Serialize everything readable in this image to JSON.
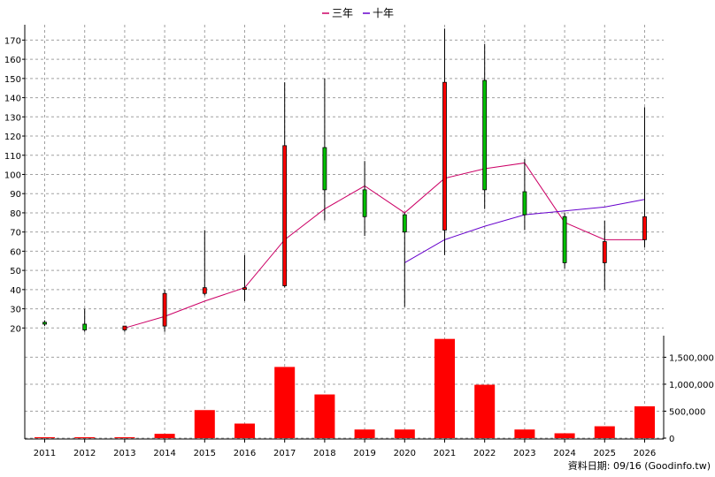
{
  "chart_data": {
    "type": "candlestick",
    "legend": [
      {
        "name": "三年",
        "color": "#cc0066"
      },
      {
        "name": "十年",
        "color": "#6600cc"
      }
    ],
    "categories": [
      "2011",
      "2012",
      "2013",
      "2014",
      "2015",
      "2016",
      "2017",
      "2018",
      "2019",
      "2020",
      "2021",
      "2022",
      "2023",
      "2024",
      "2025",
      "2026"
    ],
    "price_axis": {
      "ylim": [
        16,
        178
      ],
      "ticks": [
        20,
        30,
        40,
        50,
        60,
        70,
        80,
        90,
        100,
        110,
        120,
        130,
        140,
        150,
        160,
        170
      ]
    },
    "volume_axis": {
      "ylim": [
        0,
        1900000
      ],
      "ticks": [
        0,
        500000,
        1000000,
        1500000
      ],
      "tick_labels": [
        "0",
        "500,000",
        "1,000,000",
        "1,500,000"
      ]
    },
    "candles": [
      {
        "year": "2011",
        "open": 23,
        "close": 22,
        "high": 24,
        "low": 21,
        "color": "#00c000"
      },
      {
        "year": "2012",
        "open": 22,
        "close": 19,
        "high": 30,
        "low": 18,
        "color": "#00c000"
      },
      {
        "year": "2013",
        "open": 19,
        "close": 21,
        "high": 21,
        "low": 18,
        "color": "#ff0000"
      },
      {
        "year": "2014",
        "open": 21,
        "close": 38,
        "high": 40,
        "low": 18,
        "color": "#ff0000"
      },
      {
        "year": "2015",
        "open": 38,
        "close": 41,
        "high": 71,
        "low": 37,
        "color": "#ff0000"
      },
      {
        "year": "2016",
        "open": 41,
        "close": 41,
        "high": 58,
        "low": 34,
        "color": "#ff0000"
      },
      {
        "year": "2017",
        "open": 42,
        "close": 115,
        "high": 148,
        "low": 41,
        "color": "#ff0000"
      },
      {
        "year": "2018",
        "open": 114,
        "close": 92,
        "high": 150,
        "low": 76,
        "color": "#00c000"
      },
      {
        "year": "2019",
        "open": 92,
        "close": 78,
        "high": 107,
        "low": 68,
        "color": "#00c000"
      },
      {
        "year": "2020",
        "open": 79,
        "close": 70,
        "high": 80,
        "low": 31,
        "color": "#00c000"
      },
      {
        "year": "2021",
        "open": 71,
        "close": 148,
        "high": 176,
        "low": 58,
        "color": "#ff0000"
      },
      {
        "year": "2022",
        "open": 149,
        "close": 92,
        "high": 168,
        "low": 82,
        "color": "#00c000"
      },
      {
        "year": "2023",
        "open": 91,
        "close": 79,
        "high": 108,
        "low": 71,
        "color": "#00c000"
      },
      {
        "year": "2024",
        "open": 78,
        "close": 54,
        "high": 80,
        "low": 51,
        "color": "#00c000"
      },
      {
        "year": "2025",
        "open": 54,
        "close": 65,
        "high": 76,
        "low": 40,
        "color": "#ff0000"
      },
      {
        "year": "2026",
        "open": 66,
        "close": 78,
        "high": 135,
        "low": 62,
        "color": "#ff0000"
      }
    ],
    "series": [
      {
        "name": "三年",
        "color": "#cc0066",
        "points": [
          [
            "2013",
            20
          ],
          [
            "2014",
            26
          ],
          [
            "2015",
            34
          ],
          [
            "2016",
            41
          ],
          [
            "2017",
            66
          ],
          [
            "2018",
            82
          ],
          [
            "2019",
            94
          ],
          [
            "2020",
            80
          ],
          [
            "2021",
            98
          ],
          [
            "2022",
            103
          ],
          [
            "2023",
            106
          ],
          [
            "2024",
            75
          ],
          [
            "2025",
            66
          ],
          [
            "2026",
            66
          ]
        ]
      },
      {
        "name": "十年",
        "color": "#6600cc",
        "points": [
          [
            "2020",
            54
          ],
          [
            "2021",
            66
          ],
          [
            "2022",
            73
          ],
          [
            "2023",
            79
          ],
          [
            "2024",
            81
          ],
          [
            "2025",
            83
          ],
          [
            "2026",
            87
          ]
        ]
      }
    ],
    "volume": [
      3000,
      8000,
      3000,
      80000,
      520000,
      270000,
      1320000,
      810000,
      160000,
      160000,
      1840000,
      990000,
      160000,
      90000,
      220000,
      590000
    ],
    "volume_color": "#ff0000"
  },
  "footer": {
    "date_label": "資料日期: 09/16",
    "source": "(Goodinfo.tw)"
  }
}
